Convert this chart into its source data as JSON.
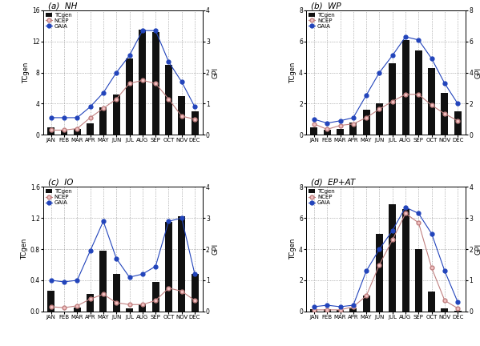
{
  "months": [
    "JAN",
    "FEB",
    "MAR",
    "APR",
    "MAY",
    "JUN",
    "JUL",
    "AUG",
    "SEP",
    "OCT",
    "NOV",
    "DEC"
  ],
  "panels": [
    {
      "label": "(a)  NH",
      "tcgen": [
        1.0,
        0.5,
        0.7,
        1.5,
        3.5,
        5.2,
        9.8,
        13.5,
        13.2,
        9.0,
        5.0,
        3.0
      ],
      "ncep": [
        0.15,
        0.15,
        0.2,
        0.55,
        0.85,
        1.15,
        1.65,
        1.75,
        1.65,
        1.15,
        0.6,
        0.5
      ],
      "gaia": [
        0.55,
        0.55,
        0.55,
        0.9,
        1.35,
        2.0,
        2.55,
        3.35,
        3.35,
        2.35,
        1.7,
        0.9
      ],
      "tcgen_ylim": [
        0,
        16
      ],
      "gpi_ylim": [
        0,
        4
      ],
      "tcgen_yticks": [
        0,
        4,
        8,
        12,
        16
      ],
      "gpi_yticks": [
        0,
        1,
        2,
        3,
        4
      ]
    },
    {
      "label": "(b)  WP",
      "tcgen": [
        0.5,
        0.3,
        0.4,
        0.8,
        1.6,
        2.0,
        4.6,
        6.1,
        5.4,
        4.3,
        2.7,
        1.5
      ],
      "ncep": [
        0.7,
        0.35,
        0.6,
        0.7,
        1.1,
        1.65,
        2.15,
        2.6,
        2.6,
        1.9,
        1.35,
        0.9
      ],
      "gaia": [
        1.0,
        0.75,
        0.9,
        1.1,
        2.55,
        4.0,
        5.1,
        6.3,
        6.1,
        4.9,
        3.3,
        2.0
      ],
      "tcgen_ylim": [
        0,
        8
      ],
      "gpi_ylim": [
        0,
        8
      ],
      "tcgen_yticks": [
        0,
        2,
        4,
        6,
        8
      ],
      "gpi_yticks": [
        0,
        2,
        4,
        6,
        8
      ]
    },
    {
      "label": "(c)  IO",
      "tcgen": [
        0.27,
        0.0,
        0.05,
        0.22,
        0.78,
        0.48,
        0.04,
        0.09,
        0.38,
        1.15,
        1.22,
        0.48
      ],
      "ncep": [
        0.15,
        0.12,
        0.18,
        0.4,
        0.55,
        0.28,
        0.22,
        0.22,
        0.35,
        0.75,
        0.65,
        0.35
      ],
      "gaia": [
        1.0,
        0.95,
        1.0,
        1.95,
        2.9,
        1.7,
        1.1,
        1.2,
        1.45,
        2.9,
        3.0,
        1.2
      ],
      "tcgen_ylim": [
        0,
        1.6
      ],
      "gpi_ylim": [
        0,
        4
      ],
      "tcgen_yticks": [
        0.0,
        0.4,
        0.8,
        1.2,
        1.6
      ],
      "gpi_yticks": [
        0,
        1,
        2,
        3,
        4
      ]
    },
    {
      "label": "(d)  EP+AT",
      "tcgen": [
        0.15,
        0.15,
        0.1,
        0.2,
        1.0,
        5.0,
        6.9,
        6.6,
        4.0,
        1.3,
        0.2,
        0.05
      ],
      "ncep": [
        0.05,
        0.05,
        0.05,
        0.15,
        0.5,
        1.5,
        2.3,
        3.15,
        2.85,
        1.4,
        0.35,
        0.1
      ],
      "gaia": [
        0.15,
        0.2,
        0.15,
        0.2,
        1.3,
        2.0,
        2.6,
        3.35,
        3.15,
        2.5,
        1.3,
        0.3
      ],
      "tcgen_ylim": [
        0,
        8
      ],
      "gpi_ylim": [
        0,
        4
      ],
      "tcgen_yticks": [
        0,
        2,
        4,
        6,
        8
      ],
      "gpi_yticks": [
        0,
        1,
        2,
        3,
        4
      ]
    }
  ],
  "bar_color": "#111111",
  "ncep_color": "#c08080",
  "gaia_color": "#2244bb",
  "background_color": "#ffffff"
}
